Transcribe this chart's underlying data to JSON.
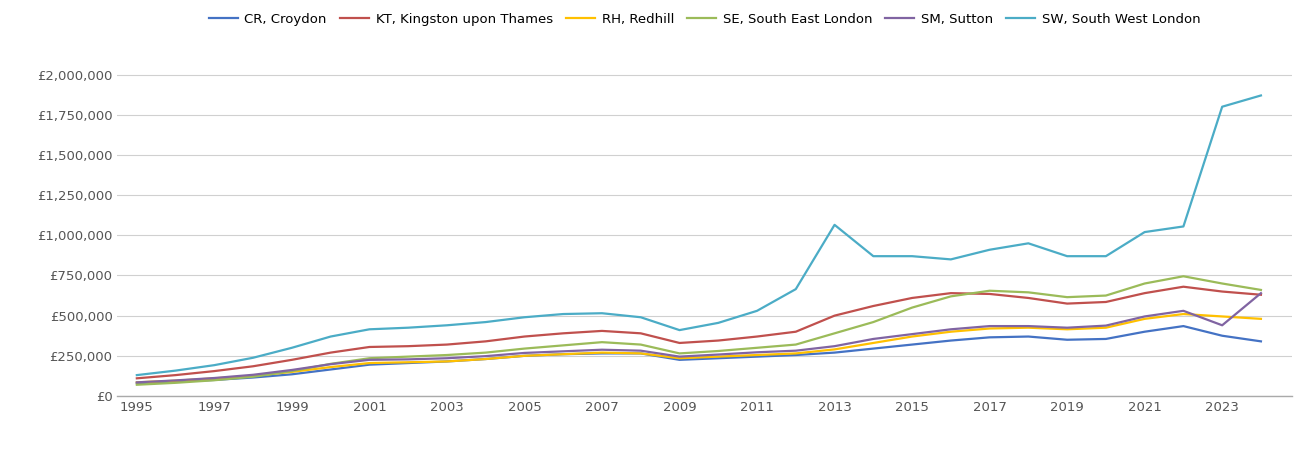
{
  "series": {
    "CR, Croydon": {
      "color": "#4472C4",
      "years": [
        1995,
        1996,
        1997,
        1998,
        1999,
        2000,
        2001,
        2002,
        2003,
        2004,
        2005,
        2006,
        2007,
        2008,
        2009,
        2010,
        2011,
        2012,
        2013,
        2014,
        2015,
        2016,
        2017,
        2018,
        2019,
        2020,
        2021,
        2022,
        2023,
        2024
      ],
      "values": [
        80000,
        90000,
        100000,
        115000,
        135000,
        165000,
        195000,
        205000,
        215000,
        230000,
        250000,
        260000,
        265000,
        265000,
        225000,
        235000,
        245000,
        255000,
        270000,
        295000,
        320000,
        345000,
        365000,
        370000,
        350000,
        355000,
        400000,
        435000,
        375000,
        340000
      ]
    },
    "KT, Kingston upon Thames": {
      "color": "#C0504D",
      "years": [
        1995,
        1996,
        1997,
        1998,
        1999,
        2000,
        2001,
        2002,
        2003,
        2004,
        2005,
        2006,
        2007,
        2008,
        2009,
        2010,
        2011,
        2012,
        2013,
        2014,
        2015,
        2016,
        2017,
        2018,
        2019,
        2020,
        2021,
        2022,
        2023,
        2024
      ],
      "values": [
        110000,
        130000,
        155000,
        185000,
        225000,
        270000,
        305000,
        310000,
        320000,
        340000,
        370000,
        390000,
        405000,
        390000,
        330000,
        345000,
        370000,
        400000,
        500000,
        560000,
        610000,
        640000,
        635000,
        610000,
        575000,
        585000,
        640000,
        680000,
        650000,
        630000
      ]
    },
    "RH, Redhill": {
      "color": "#FFC000",
      "years": [
        1995,
        1996,
        1997,
        1998,
        1999,
        2000,
        2001,
        2002,
        2003,
        2004,
        2005,
        2006,
        2007,
        2008,
        2009,
        2010,
        2011,
        2012,
        2013,
        2014,
        2015,
        2016,
        2017,
        2018,
        2019,
        2020,
        2021,
        2022,
        2023,
        2024
      ],
      "values": [
        85000,
        95000,
        110000,
        125000,
        150000,
        180000,
        205000,
        210000,
        215000,
        230000,
        250000,
        260000,
        270000,
        265000,
        235000,
        245000,
        255000,
        265000,
        290000,
        330000,
        370000,
        400000,
        420000,
        425000,
        415000,
        425000,
        480000,
        510000,
        495000,
        480000
      ]
    },
    "SE, South East London": {
      "color": "#9BBB59",
      "years": [
        1995,
        1996,
        1997,
        1998,
        1999,
        2000,
        2001,
        2002,
        2003,
        2004,
        2005,
        2006,
        2007,
        2008,
        2009,
        2010,
        2011,
        2012,
        2013,
        2014,
        2015,
        2016,
        2017,
        2018,
        2019,
        2020,
        2021,
        2022,
        2023,
        2024
      ],
      "values": [
        70000,
        82000,
        98000,
        120000,
        155000,
        200000,
        235000,
        245000,
        255000,
        270000,
        295000,
        315000,
        335000,
        320000,
        265000,
        280000,
        300000,
        320000,
        390000,
        460000,
        550000,
        620000,
        655000,
        645000,
        615000,
        625000,
        700000,
        745000,
        700000,
        660000
      ]
    },
    "SM, Sutton": {
      "color": "#8064A2",
      "years": [
        1995,
        1996,
        1997,
        1998,
        1999,
        2000,
        2001,
        2002,
        2003,
        2004,
        2005,
        2006,
        2007,
        2008,
        2009,
        2010,
        2011,
        2012,
        2013,
        2014,
        2015,
        2016,
        2017,
        2018,
        2019,
        2020,
        2021,
        2022,
        2023,
        2024
      ],
      "values": [
        85000,
        97000,
        112000,
        132000,
        162000,
        198000,
        225000,
        228000,
        235000,
        248000,
        268000,
        278000,
        288000,
        282000,
        245000,
        258000,
        272000,
        282000,
        310000,
        355000,
        385000,
        415000,
        435000,
        435000,
        425000,
        438000,
        495000,
        530000,
        440000,
        640000
      ]
    },
    "SW, South West London": {
      "color": "#4BACC6",
      "years": [
        1995,
        1996,
        1997,
        1998,
        1999,
        2000,
        2001,
        2002,
        2003,
        2004,
        2005,
        2006,
        2007,
        2008,
        2009,
        2010,
        2011,
        2012,
        2013,
        2014,
        2015,
        2016,
        2017,
        2018,
        2019,
        2020,
        2021,
        2022,
        2023,
        2024
      ],
      "values": [
        130000,
        158000,
        192000,
        238000,
        300000,
        370000,
        415000,
        425000,
        440000,
        460000,
        490000,
        510000,
        515000,
        490000,
        410000,
        455000,
        530000,
        665000,
        1065000,
        870000,
        870000,
        850000,
        910000,
        950000,
        870000,
        870000,
        1020000,
        1055000,
        1800000,
        1870000
      ]
    }
  },
  "ylim": [
    0,
    2100000
  ],
  "yticks": [
    0,
    250000,
    500000,
    750000,
    1000000,
    1250000,
    1500000,
    1750000,
    2000000
  ],
  "xticks": [
    1995,
    1997,
    1999,
    2001,
    2003,
    2005,
    2007,
    2009,
    2011,
    2013,
    2015,
    2017,
    2019,
    2021,
    2023
  ],
  "xlim": [
    1994.5,
    2024.8
  ],
  "background_color": "#ffffff",
  "grid_color": "#d0d0d0",
  "legend_fontsize": 9.5,
  "tick_fontsize": 9.5,
  "line_width": 1.6,
  "tick_color": "#555555"
}
